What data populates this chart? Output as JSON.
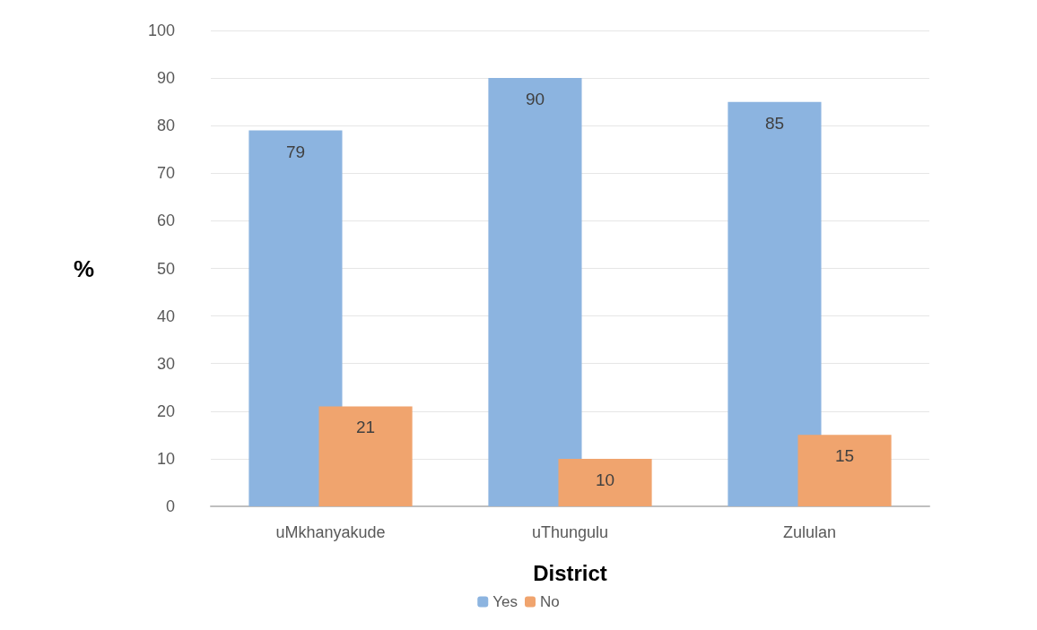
{
  "chart_data": {
    "type": "bar",
    "xlabel": "District",
    "ylabel": "%",
    "categories": [
      "uMkhanyakude",
      "uThungulu",
      "Zululan"
    ],
    "series": [
      {
        "name": "Yes",
        "color": "#8cb4e0",
        "values": [
          79,
          90,
          85
        ]
      },
      {
        "name": "No",
        "color": "#f0a46e",
        "values": [
          21,
          10,
          15
        ]
      }
    ],
    "ylim": [
      0,
      100
    ],
    "yticks": [
      0,
      10,
      20,
      30,
      40,
      50,
      60,
      70,
      80,
      90,
      100
    ],
    "grid": "y",
    "legend": "bottom",
    "data_labels": true
  }
}
